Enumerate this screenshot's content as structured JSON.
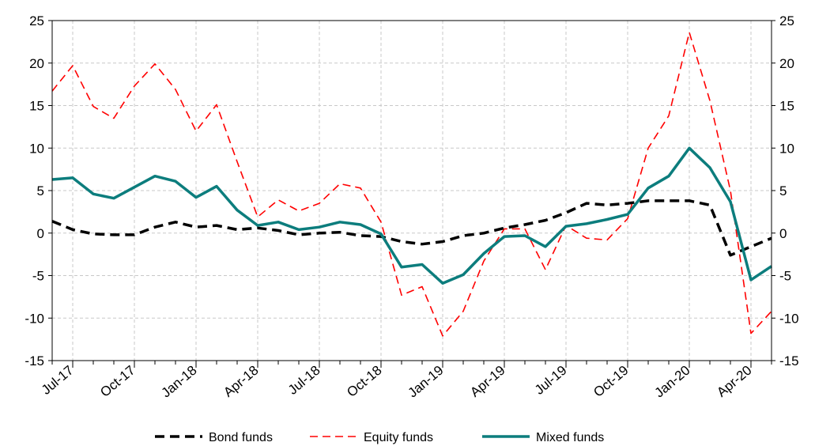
{
  "chart_data": {
    "type": "line",
    "title": "",
    "xlabel": "",
    "ylabel": "",
    "ylim": [
      -15,
      25
    ],
    "yticks": [
      -15,
      -10,
      -5,
      0,
      5,
      10,
      15,
      20,
      25
    ],
    "y_axes": "left and right (same scale)",
    "grid": "dashed, light gray",
    "legend_position": "bottom-center",
    "x": [
      "Jun-17",
      "Jul-17",
      "Aug-17",
      "Sep-17",
      "Oct-17",
      "Nov-17",
      "Dec-17",
      "Jan-18",
      "Feb-18",
      "Mar-18",
      "Apr-18",
      "May-18",
      "Jun-18",
      "Jul-18",
      "Aug-18",
      "Sep-18",
      "Oct-18",
      "Nov-18",
      "Dec-18",
      "Jan-19",
      "Feb-19",
      "Mar-19",
      "Apr-19",
      "May-19",
      "Jun-19",
      "Jul-19",
      "Aug-19",
      "Sep-19",
      "Oct-19",
      "Nov-19",
      "Dec-19",
      "Jan-20",
      "Feb-20",
      "Mar-20",
      "Apr-20",
      "May-20"
    ],
    "x_tick_labels": [
      "Jul-17",
      "Oct-17",
      "Jan-18",
      "Apr-18",
      "Jul-18",
      "Oct-18",
      "Jan-19",
      "Apr-19",
      "Jul-19",
      "Oct-19",
      "Jan-20",
      "Apr-20"
    ],
    "series": [
      {
        "name": "Bond funds",
        "color": "#000000",
        "style": "dashed-thick",
        "values": [
          1.4,
          0.4,
          -0.1,
          -0.2,
          -0.2,
          0.7,
          1.3,
          0.7,
          0.9,
          0.4,
          0.6,
          0.3,
          -0.2,
          0.0,
          0.1,
          -0.3,
          -0.4,
          -1.0,
          -1.3,
          -1.0,
          -0.3,
          0.0,
          0.6,
          1.0,
          1.5,
          2.4,
          3.5,
          3.3,
          3.5,
          3.8,
          3.8,
          3.8,
          3.3,
          -2.6,
          -1.6,
          -0.6
        ]
      },
      {
        "name": "Equity funds",
        "color": "#ff0000",
        "style": "dashed-thin",
        "values": [
          16.7,
          19.7,
          14.9,
          13.5,
          17.3,
          19.9,
          16.9,
          12.0,
          15.1,
          8.4,
          1.9,
          3.9,
          2.6,
          3.5,
          5.8,
          5.3,
          1.3,
          -7.3,
          -6.3,
          -12.1,
          -9.2,
          -3.3,
          0.5,
          0.5,
          -4.3,
          0.9,
          -0.6,
          -0.8,
          1.7,
          10.0,
          13.8,
          23.6,
          15.6,
          5.0,
          -11.8,
          -9.2
        ]
      },
      {
        "name": "Mixed funds",
        "color": "#0c7d7d",
        "style": "solid-thick",
        "values": [
          6.3,
          6.5,
          4.6,
          4.1,
          5.4,
          6.7,
          6.1,
          4.2,
          5.5,
          2.7,
          0.9,
          1.3,
          0.4,
          0.7,
          1.3,
          1.0,
          -0.1,
          -4.0,
          -3.7,
          -5.9,
          -4.9,
          -2.4,
          -0.4,
          -0.3,
          -1.6,
          0.8,
          1.1,
          1.6,
          2.2,
          5.3,
          6.7,
          10.0,
          7.7,
          3.7,
          -5.5,
          -3.9
        ]
      }
    ]
  }
}
